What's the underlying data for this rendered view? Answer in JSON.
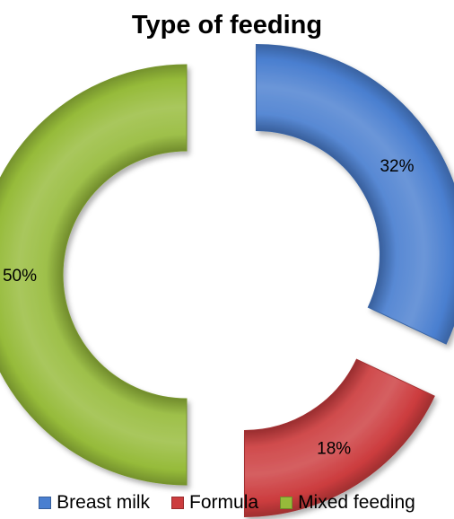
{
  "chart_data": {
    "type": "pie",
    "title": "Type of feeding",
    "categories": [
      "Breast milk",
      "Formula",
      "Mixed feeding"
    ],
    "values": [
      32,
      18,
      50
    ],
    "labels": [
      "32%",
      "18%",
      "50%"
    ],
    "colors": [
      "#4a7fd0",
      "#cc3c3e",
      "#96bb3a"
    ],
    "legend_position": "bottom",
    "donut": true,
    "exploded": true
  }
}
